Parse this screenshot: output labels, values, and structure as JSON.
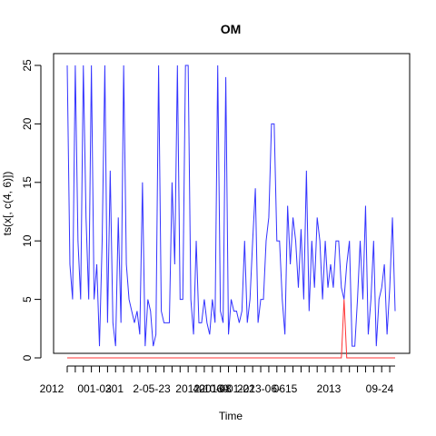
{
  "chart_data": {
    "type": "line",
    "title": "OM",
    "xlabel": "Time",
    "ylabel": "ts(x[, c(4, 6)])",
    "ylim": [
      0,
      25
    ],
    "yticks": [
      0,
      5,
      10,
      15,
      20,
      25
    ],
    "xticks": [
      "2012-01-03",
      "2012-05-23",
      "2012-10-08",
      "2013-01-22",
      "2013-06-15",
      "2013-09-24"
    ],
    "x_tick_labels": [
      "2012",
      "001-03",
      "201",
      "2-05-23",
      "40",
      "2012-10-08",
      "60",
      "2013-01-22",
      "2013-06-",
      "0615",
      "2013",
      "09-24"
    ],
    "colors": {
      "series_blue": "#3333ff",
      "series_red": "#ff3333"
    },
    "series": [
      {
        "values": [
          25,
          8,
          5,
          25,
          10,
          5,
          25,
          12,
          5,
          25,
          5,
          8,
          1,
          10,
          25,
          3,
          16,
          3,
          1,
          12,
          3,
          25,
          8,
          5,
          4,
          3,
          4,
          2,
          15,
          1,
          5,
          4,
          1,
          2,
          25,
          4,
          3,
          3,
          3,
          15,
          8,
          25,
          5,
          5,
          25,
          25,
          5,
          2,
          10,
          3,
          3,
          5,
          3,
          2,
          5,
          3,
          25,
          4,
          3,
          24,
          2,
          5,
          4,
          4,
          3,
          4,
          10,
          3,
          5,
          10,
          14.5,
          3,
          5,
          5,
          10,
          12,
          20,
          20,
          10,
          10,
          5,
          2,
          13,
          8,
          12,
          10,
          6,
          11,
          5,
          16,
          4,
          10,
          6,
          12,
          10,
          5,
          10,
          6,
          8,
          6,
          10,
          10,
          6,
          5,
          8,
          10,
          1,
          1,
          5,
          10,
          5,
          13,
          2,
          5,
          10,
          1,
          5,
          6,
          8,
          2,
          6,
          12,
          4
        ]
      },
      {
        "values": [
          0,
          0,
          0,
          0,
          0,
          0,
          0,
          0,
          0,
          0,
          0,
          0,
          0,
          0,
          0,
          0,
          0,
          0,
          0,
          0,
          0,
          0,
          0,
          0,
          0,
          0,
          0,
          0,
          0,
          0,
          0,
          0,
          0,
          0,
          0,
          0,
          0,
          0,
          0,
          0,
          0,
          0,
          0,
          0,
          0,
          0,
          0,
          0,
          0,
          0,
          0,
          0,
          0,
          0,
          0,
          0,
          0,
          0,
          0,
          0,
          0,
          0,
          0,
          0,
          0,
          0,
          0,
          0,
          0,
          0,
          0,
          0,
          0,
          0,
          0,
          0,
          0,
          0,
          0,
          0,
          0,
          0,
          0,
          0,
          0,
          0,
          0,
          0,
          0,
          0,
          0,
          0,
          0,
          0,
          0,
          0,
          0,
          0,
          0,
          0,
          0,
          0,
          0,
          5,
          0,
          0,
          0,
          0,
          0,
          0,
          0,
          0,
          0,
          0,
          0,
          0,
          0,
          0,
          0,
          0,
          0,
          0,
          0
        ]
      }
    ]
  }
}
